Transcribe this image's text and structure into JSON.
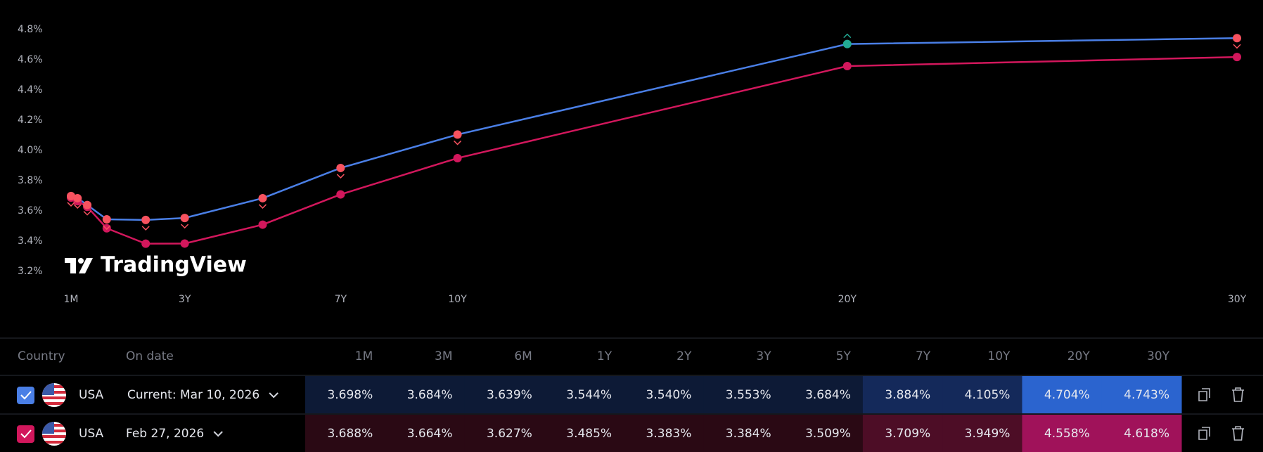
{
  "chart_data": {
    "type": "line",
    "watermark": "TradingView",
    "x": [
      0.0833,
      0.25,
      0.5,
      1,
      2,
      3,
      5,
      7,
      10,
      20,
      30
    ],
    "categories": [
      "1M",
      "3M",
      "6M",
      "1Y",
      "2Y",
      "3Y",
      "5Y",
      "7Y",
      "10Y",
      "20Y",
      "30Y"
    ],
    "xlim": [
      0.0833,
      30
    ],
    "xticks": [
      {
        "value": 0.0833,
        "label": "1M"
      },
      {
        "value": 3,
        "label": "3Y"
      },
      {
        "value": 7,
        "label": "7Y"
      },
      {
        "value": 10,
        "label": "10Y"
      },
      {
        "value": 20,
        "label": "20Y"
      },
      {
        "value": 30,
        "label": "30Y"
      }
    ],
    "ylim": [
      3.2,
      4.8
    ],
    "yticks": [
      {
        "value": 3.2,
        "label": "3.2%"
      },
      {
        "value": 3.4,
        "label": "3.4%"
      },
      {
        "value": 3.6,
        "label": "3.6%"
      },
      {
        "value": 3.8,
        "label": "3.8%"
      },
      {
        "value": 4.0,
        "label": "4.0%"
      },
      {
        "value": 4.2,
        "label": "4.2%"
      },
      {
        "value": 4.4,
        "label": "4.4%"
      },
      {
        "value": 4.6,
        "label": "4.6%"
      },
      {
        "value": 4.8,
        "label": "4.8%"
      }
    ],
    "grid": false,
    "table": {
      "columns": [
        "Country",
        "On date"
      ]
    },
    "series": [
      {
        "name": "Current: Mar 10, 2026",
        "country": "USA",
        "color": "#4a7fe6",
        "values": [
          3.698,
          3.684,
          3.639,
          3.544,
          3.54,
          3.553,
          3.684,
          3.884,
          4.105,
          4.704,
          4.743
        ],
        "value_labels": [
          "3.698%",
          "3.684%",
          "3.639%",
          "3.544%",
          "3.540%",
          "3.553%",
          "3.684%",
          "3.884%",
          "4.105%",
          "4.704%",
          "4.743%"
        ],
        "marker_colors": [
          "#f7525f",
          "#f7525f",
          "#f7525f",
          "#f7525f",
          "#f7525f",
          "#f7525f",
          "#f7525f",
          "#f7525f",
          "#f7525f",
          "#22ab94",
          "#f7525f"
        ]
      },
      {
        "name": "Feb 27, 2026",
        "country": "USA",
        "color": "#d2175c",
        "values": [
          3.688,
          3.664,
          3.627,
          3.485,
          3.383,
          3.384,
          3.509,
          3.709,
          3.949,
          4.558,
          4.618
        ],
        "value_labels": [
          "3.688%",
          "3.664%",
          "3.627%",
          "3.485%",
          "3.383%",
          "3.384%",
          "3.509%",
          "3.709%",
          "3.949%",
          "4.558%",
          "4.618%"
        ]
      }
    ]
  }
}
